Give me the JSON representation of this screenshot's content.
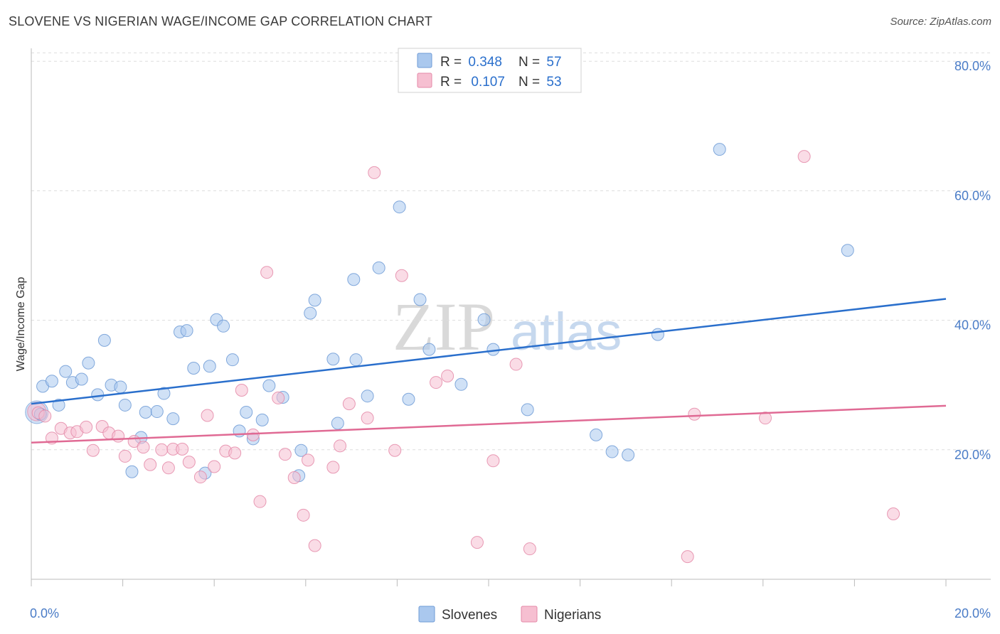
{
  "header": {
    "title": "SLOVENE VS NIGERIAN WAGE/INCOME GAP CORRELATION CHART",
    "source": "Source: ZipAtlas.com"
  },
  "watermark": {
    "zip": "ZIP",
    "atlas": "atlas"
  },
  "legend": {
    "rows": [
      {
        "r_label": "R = ",
        "r_value": "0.348",
        "n_label": "N = ",
        "n_value": "57"
      },
      {
        "r_label": "R = ",
        "r_value": "0.107",
        "n_label": "N = ",
        "n_value": "53"
      }
    ]
  },
  "colors": {
    "slovenes_fill": "#aac8ee",
    "slovenes_stroke": "#6f9bd6",
    "slovenes_line": "#2a6fcc",
    "nigerians_fill": "#f6bfd1",
    "nigerians_stroke": "#e48aa8",
    "nigerians_line": "#e06a94",
    "grid": "#dddddd",
    "axis_text": "#4a7cc7"
  },
  "chart_data": {
    "type": "scatter",
    "title": "SLOVENE VS NIGERIAN WAGE/INCOME GAP CORRELATION CHART",
    "xlabel": "",
    "ylabel": "Wage/Income Gap",
    "xlim": [
      0,
      20
    ],
    "ylim": [
      0,
      82
    ],
    "x_tick_labels": [
      "0.0%",
      "20.0%"
    ],
    "y_ticks": [
      20,
      40,
      60,
      80
    ],
    "y_tick_labels": [
      "20.0%",
      "40.0%",
      "60.0%",
      "80.0%"
    ],
    "legend_position": "top-center",
    "series": [
      {
        "name": "Slovenes",
        "R": 0.348,
        "N": 57,
        "trend": {
          "x": [
            0,
            20
          ],
          "y": [
            27.1,
            43.3
          ]
        },
        "points": [
          [
            0.2,
            25.5
          ],
          [
            0.25,
            29.8
          ],
          [
            0.45,
            30.6
          ],
          [
            0.6,
            26.9
          ],
          [
            0.75,
            32.1
          ],
          [
            0.9,
            30.4
          ],
          [
            1.1,
            30.9
          ],
          [
            1.25,
            33.4
          ],
          [
            1.45,
            28.5
          ],
          [
            1.6,
            36.9
          ],
          [
            1.75,
            30.0
          ],
          [
            1.95,
            29.7
          ],
          [
            2.05,
            26.9
          ],
          [
            2.2,
            16.6
          ],
          [
            2.4,
            21.9
          ],
          [
            2.5,
            25.8
          ],
          [
            2.75,
            25.9
          ],
          [
            2.9,
            28.7
          ],
          [
            3.1,
            24.8
          ],
          [
            3.25,
            38.2
          ],
          [
            3.4,
            38.4
          ],
          [
            3.55,
            32.6
          ],
          [
            3.8,
            16.4
          ],
          [
            3.9,
            32.9
          ],
          [
            4.05,
            40.1
          ],
          [
            4.2,
            39.1
          ],
          [
            4.4,
            33.9
          ],
          [
            4.55,
            22.9
          ],
          [
            4.7,
            25.8
          ],
          [
            4.85,
            21.7
          ],
          [
            5.05,
            24.6
          ],
          [
            5.2,
            29.9
          ],
          [
            5.5,
            28.1
          ],
          [
            5.85,
            16.0
          ],
          [
            5.9,
            19.9
          ],
          [
            6.1,
            41.1
          ],
          [
            6.2,
            43.1
          ],
          [
            6.6,
            34.0
          ],
          [
            6.7,
            24.1
          ],
          [
            7.05,
            46.3
          ],
          [
            7.1,
            33.9
          ],
          [
            7.35,
            28.3
          ],
          [
            7.6,
            48.1
          ],
          [
            8.05,
            57.5
          ],
          [
            8.25,
            27.8
          ],
          [
            8.5,
            43.2
          ],
          [
            8.7,
            35.5
          ],
          [
            9.4,
            30.1
          ],
          [
            9.9,
            40.1
          ],
          [
            10.1,
            35.5
          ],
          [
            10.85,
            26.2
          ],
          [
            12.35,
            22.3
          ],
          [
            12.7,
            19.7
          ],
          [
            13.05,
            19.2
          ],
          [
            13.7,
            37.8
          ],
          [
            15.05,
            66.4
          ],
          [
            17.85,
            50.8
          ]
        ]
      },
      {
        "name": "Nigerians",
        "R": 0.107,
        "N": 53,
        "trend": {
          "x": [
            0,
            20
          ],
          "y": [
            21.1,
            26.8
          ]
        },
        "points": [
          [
            0.15,
            25.7
          ],
          [
            0.3,
            25.2
          ],
          [
            0.45,
            21.8
          ],
          [
            0.65,
            23.3
          ],
          [
            0.85,
            22.6
          ],
          [
            1.0,
            22.8
          ],
          [
            1.2,
            23.5
          ],
          [
            1.35,
            19.9
          ],
          [
            1.55,
            23.6
          ],
          [
            1.7,
            22.6
          ],
          [
            1.9,
            22.1
          ],
          [
            2.05,
            19.0
          ],
          [
            2.25,
            21.3
          ],
          [
            2.45,
            20.4
          ],
          [
            2.6,
            17.7
          ],
          [
            2.85,
            20.0
          ],
          [
            3.0,
            17.2
          ],
          [
            3.1,
            20.1
          ],
          [
            3.3,
            20.1
          ],
          [
            3.45,
            18.1
          ],
          [
            3.7,
            15.8
          ],
          [
            3.85,
            25.3
          ],
          [
            4.0,
            17.4
          ],
          [
            4.25,
            19.8
          ],
          [
            4.45,
            19.5
          ],
          [
            4.6,
            29.2
          ],
          [
            4.85,
            22.3
          ],
          [
            5.0,
            12.0
          ],
          [
            5.15,
            47.4
          ],
          [
            5.4,
            28.0
          ],
          [
            5.55,
            19.3
          ],
          [
            5.75,
            15.7
          ],
          [
            5.95,
            9.9
          ],
          [
            6.05,
            18.4
          ],
          [
            6.2,
            5.2
          ],
          [
            6.6,
            17.3
          ],
          [
            6.75,
            20.6
          ],
          [
            6.95,
            27.1
          ],
          [
            7.35,
            24.9
          ],
          [
            7.5,
            62.8
          ],
          [
            7.95,
            19.9
          ],
          [
            8.1,
            46.9
          ],
          [
            8.85,
            30.4
          ],
          [
            9.1,
            31.4
          ],
          [
            9.75,
            5.7
          ],
          [
            10.1,
            18.3
          ],
          [
            10.6,
            33.2
          ],
          [
            10.9,
            4.7
          ],
          [
            14.35,
            3.5
          ],
          [
            14.5,
            25.5
          ],
          [
            16.05,
            24.9
          ],
          [
            16.9,
            65.3
          ],
          [
            18.85,
            10.1
          ]
        ]
      }
    ]
  }
}
